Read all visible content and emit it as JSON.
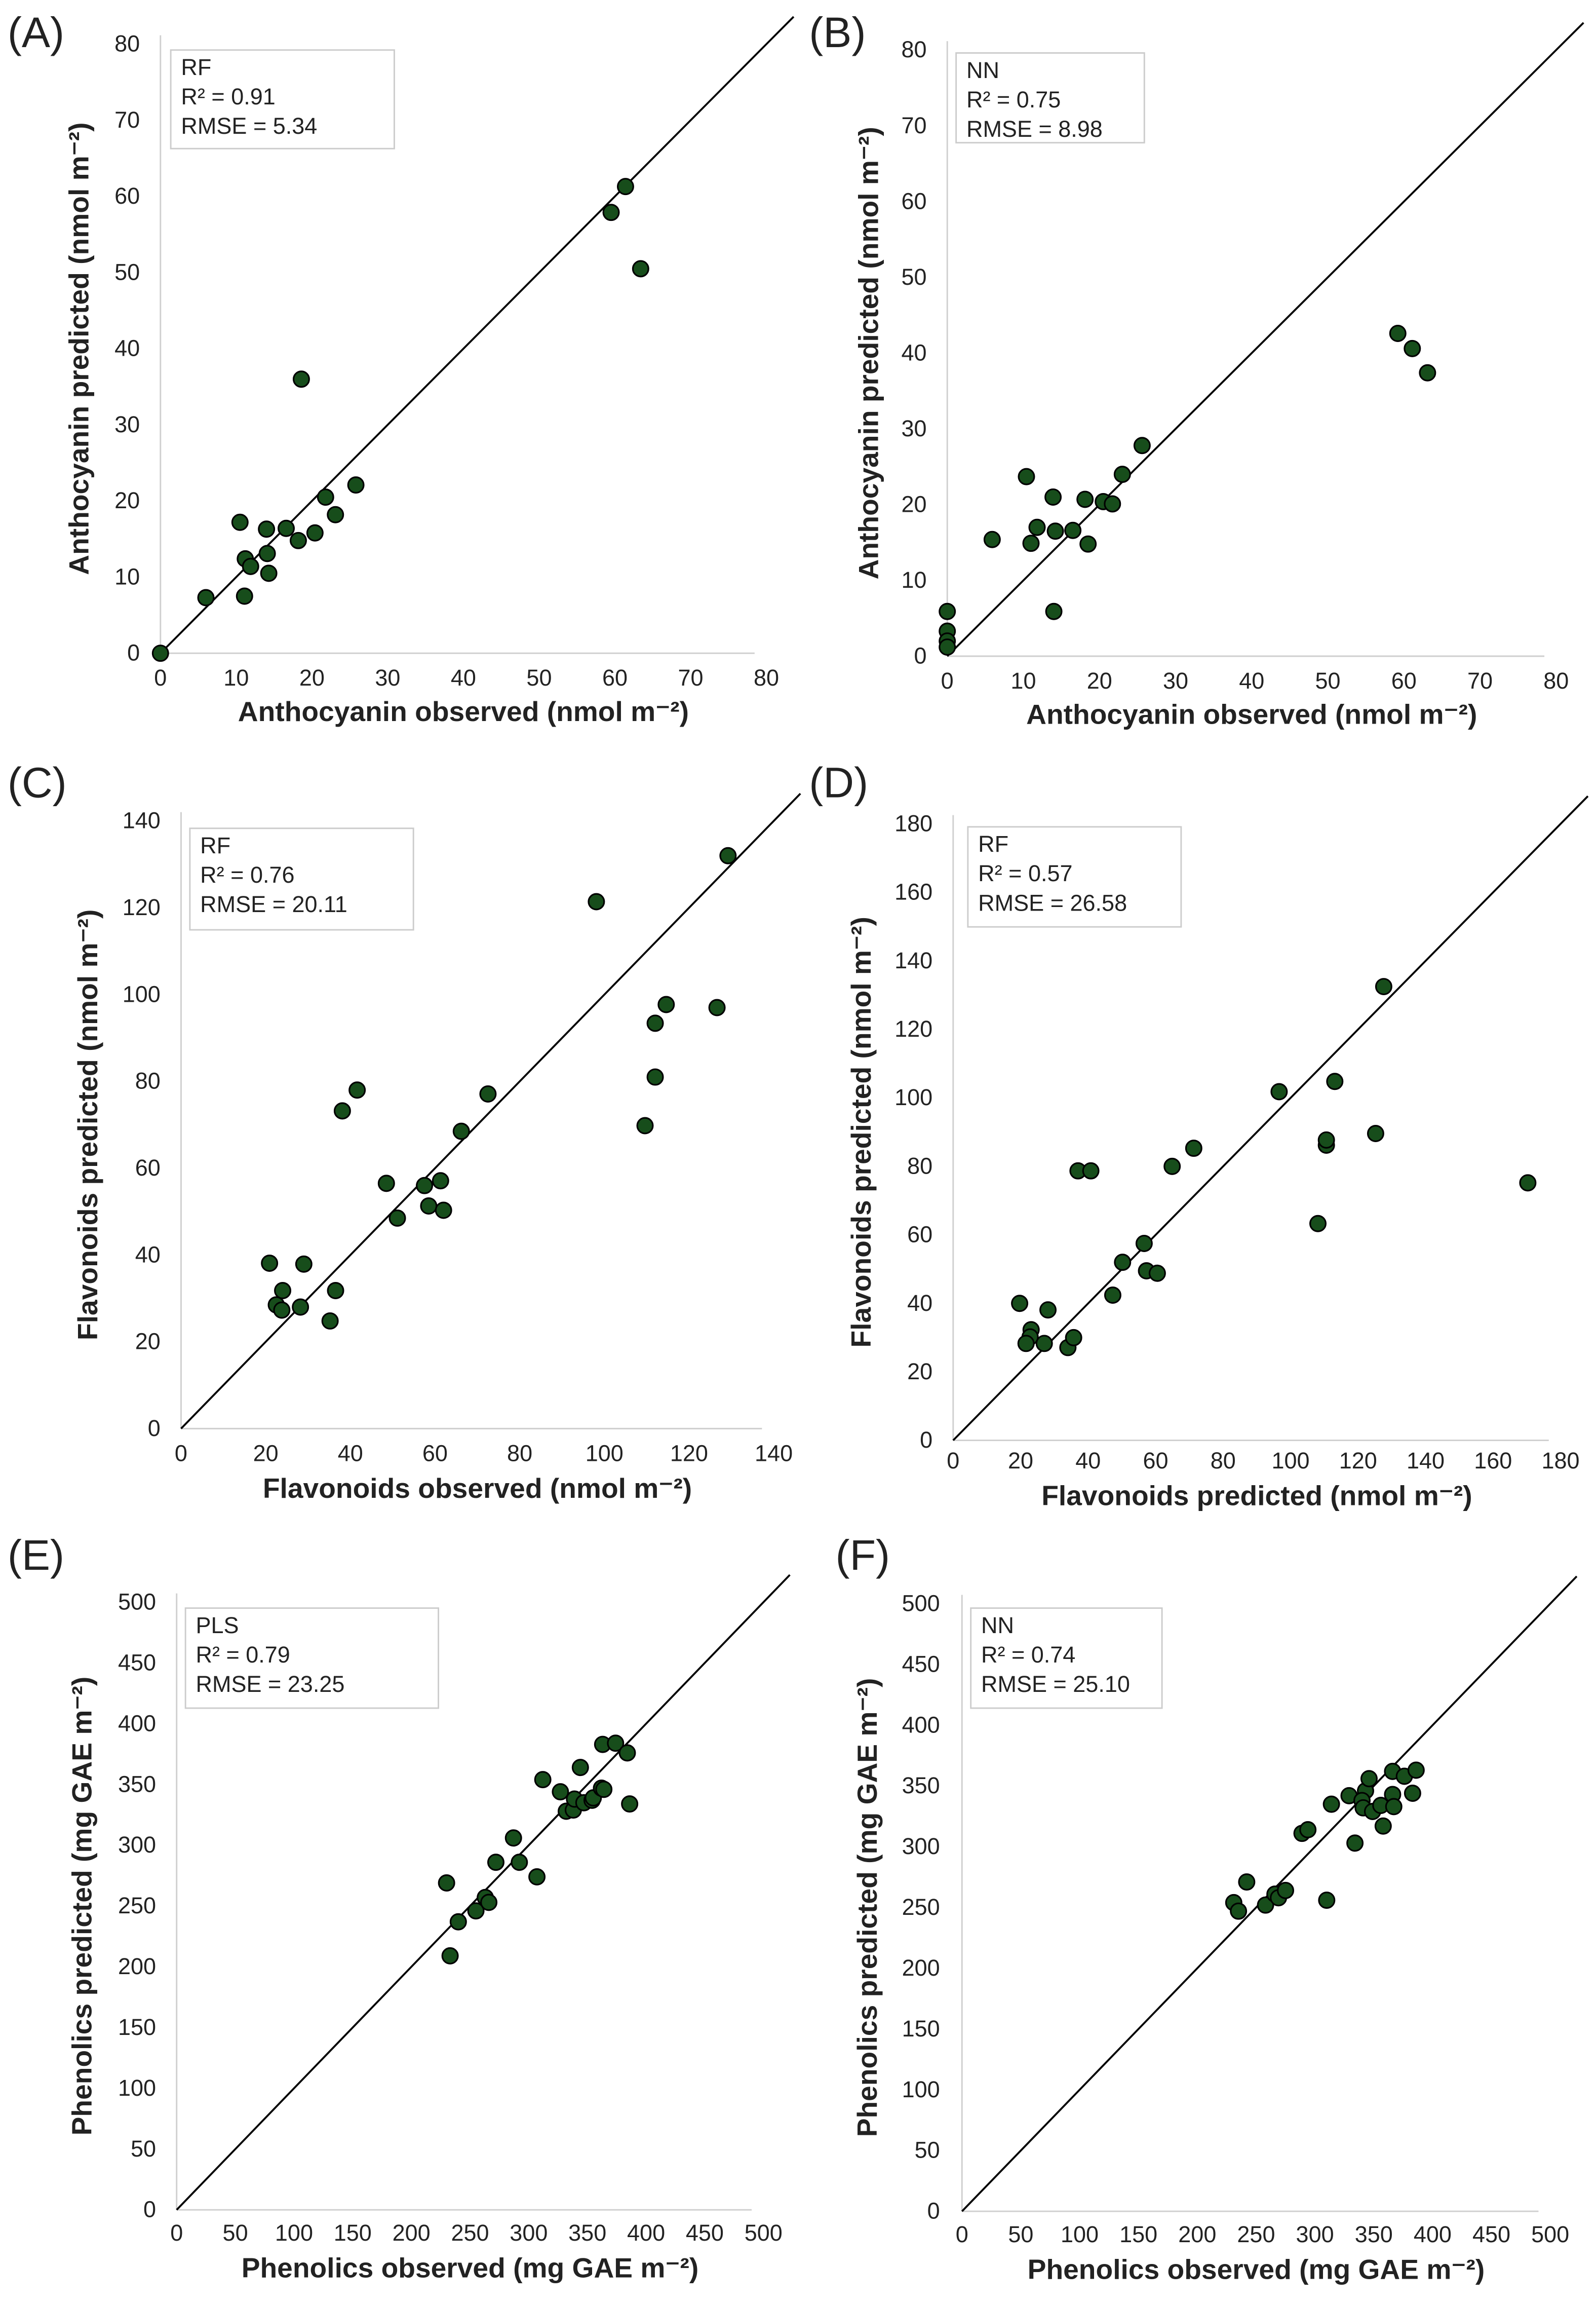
{
  "chart_data": [
    {
      "panel": "(A)",
      "type": "scatter",
      "legend": {
        "model": "RF",
        "r2": "R² = 0.91",
        "rmse": "RMSE = 5.34"
      },
      "xlabel": "Anthocyanin observed (nmol m⁻²)",
      "ylabel": "Anthocyanin predicted (nmol m⁻²)",
      "xlim": [
        0,
        80
      ],
      "ylim": [
        0,
        80
      ],
      "xstep": 10,
      "ystep": 10,
      "xticks": [
        "0",
        "10",
        "20",
        "30",
        "40",
        "50",
        "60",
        "70",
        "80"
      ],
      "yticks": [
        "0",
        "10",
        "20",
        "30",
        "40",
        "50",
        "60",
        "70",
        "80"
      ],
      "reference_line": "1:1",
      "marker_color": "#174d1b",
      "x": [
        0,
        6.0,
        10.5,
        14.0,
        16.6,
        11.2,
        11.9,
        14.1,
        14.3,
        11.1,
        18.2,
        20.4,
        21.8,
        23.1,
        25.8,
        18.6,
        59.5,
        61.4,
        63.4
      ],
      "y": [
        0,
        7.3,
        17.2,
        16.3,
        16.4,
        12.4,
        11.4,
        13.1,
        10.5,
        7.5,
        14.8,
        15.8,
        20.5,
        18.2,
        22.1,
        36.0,
        57.9,
        61.3,
        50.5
      ]
    },
    {
      "panel": "(B)",
      "type": "scatter",
      "legend": {
        "model": "NN",
        "r2": "R² = 0.75",
        "rmse": "RMSE = 8.98"
      },
      "xlabel": "Anthocyanin observed (nmol m⁻²)",
      "ylabel": "Anthocyanin predicted (nmol m⁻²)",
      "xlim": [
        0,
        80
      ],
      "ylim": [
        0,
        80
      ],
      "xstep": 10,
      "ystep": 10,
      "xticks": [
        "0",
        "10",
        "20",
        "30",
        "40",
        "50",
        "60",
        "70",
        "80"
      ],
      "yticks": [
        "0",
        "10",
        "20",
        "30",
        "40",
        "50",
        "60",
        "70",
        "80"
      ],
      "reference_line": "1:1",
      "marker_color": "#174d1b",
      "x": [
        0,
        0,
        0,
        0,
        5.9,
        10.4,
        11.0,
        11.8,
        13.9,
        14.2,
        14.0,
        16.5,
        18.1,
        18.5,
        20.5,
        21.7,
        23.0,
        25.6,
        59.2,
        61.1,
        63.1
      ],
      "y": [
        5.9,
        3.3,
        2.0,
        1.2,
        15.4,
        23.7,
        14.9,
        17.0,
        21.0,
        16.5,
        5.9,
        16.6,
        20.7,
        14.8,
        20.4,
        20.1,
        24.0,
        27.8,
        42.6,
        40.6,
        37.4
      ]
    },
    {
      "panel": "(C)",
      "type": "scatter",
      "legend": {
        "model": "RF",
        "r2": "R² = 0.76",
        "rmse": "RMSE = 20.11"
      },
      "xlabel": "Flavonoids observed (nmol m⁻²)",
      "ylabel": "Flavonoids predicted (nmol m⁻²)",
      "xlim": [
        0,
        140
      ],
      "ylim": [
        0,
        140
      ],
      "xstep": 20,
      "ystep": 20,
      "xticks": [
        "0",
        "20",
        "40",
        "60",
        "80",
        "100",
        "120",
        "140"
      ],
      "yticks": [
        "0",
        "20",
        "40",
        "60",
        "80",
        "100",
        "120",
        "140"
      ],
      "reference_line": "1:1",
      "marker_color": "#174d1b",
      "x": [
        20.9,
        29.0,
        24.0,
        22.5,
        23.8,
        28.2,
        36.5,
        35.2,
        38.1,
        41.6,
        48.5,
        51.1,
        57.5,
        58.5,
        61.3,
        62.0,
        66.2,
        72.5,
        98.1,
        109.6,
        112.0,
        112.0,
        114.6,
        126.6,
        129.2
      ],
      "y": [
        38.1,
        37.9,
        31.8,
        28.5,
        27.3,
        28.0,
        31.8,
        24.8,
        73.2,
        78.0,
        56.5,
        48.5,
        56.0,
        51.3,
        57.1,
        50.3,
        68.5,
        77.1,
        121.4,
        69.8,
        93.4,
        81.0,
        97.7,
        97.0,
        132.0
      ]
    },
    {
      "panel": "(D)",
      "type": "scatter",
      "legend": {
        "model": "RF",
        "r2": "R² = 0.57",
        "rmse": "RMSE = 26.58"
      },
      "xlabel": "Flavonoids predicted (nmol m⁻²)",
      "ylabel": "Flavonoids predicted (nmol m⁻²)",
      "xlim": [
        0,
        180
      ],
      "ylim": [
        0,
        180
      ],
      "xstep": 20,
      "ystep": 20,
      "xticks": [
        "0",
        "20",
        "40",
        "60",
        "80",
        "100",
        "120",
        "140",
        "160",
        "180"
      ],
      "yticks": [
        "0",
        "20",
        "40",
        "60",
        "80",
        "100",
        "120",
        "140",
        "160",
        "180"
      ],
      "reference_line": "1:1",
      "marker_color": "#174d1b",
      "x": [
        19.7,
        28.1,
        23.1,
        22.8,
        21.6,
        27.0,
        34.0,
        35.7,
        37.0,
        40.8,
        47.3,
        50.2,
        56.6,
        57.3,
        60.5,
        64.9,
        71.3,
        96.6,
        108.1,
        110.6,
        110.6,
        113.1,
        125.2,
        127.6,
        170.3
      ],
      "y": [
        40.0,
        38.1,
        32.3,
        30.2,
        28.3,
        28.3,
        27.1,
        30.0,
        78.7,
        78.7,
        42.4,
        52.0,
        57.5,
        49.5,
        48.8,
        80.0,
        85.3,
        101.8,
        63.3,
        86.2,
        87.7,
        104.8,
        89.6,
        132.5,
        75.2
      ]
    },
    {
      "panel": "(E)",
      "type": "scatter",
      "legend": {
        "model": "PLS",
        "r2": "R² = 0.79",
        "rmse": "RMSE = 23.25"
      },
      "xlabel": "Phenolics observed (mg GAE m⁻²)",
      "ylabel": "Phenolics predicted (mg GAE m⁻²)",
      "xlim": [
        0,
        500
      ],
      "ylim": [
        0,
        500
      ],
      "xstep": 50,
      "ystep": 50,
      "xticks": [
        "0",
        "50",
        "100",
        "150",
        "200",
        "250",
        "300",
        "350",
        "400",
        "450",
        "500"
      ],
      "yticks": [
        "0",
        "50",
        "100",
        "150",
        "200",
        "250",
        "300",
        "350",
        "400",
        "450",
        "500"
      ],
      "reference_line": "1:1",
      "marker_color": "#174d1b",
      "x": [
        230,
        233,
        240,
        255,
        263,
        266,
        272,
        287,
        292,
        307,
        312,
        327,
        332,
        338,
        339,
        347,
        344,
        354,
        355,
        362,
        364,
        363,
        374,
        384,
        386
      ],
      "y": [
        269,
        209,
        237,
        246,
        257,
        253,
        286,
        306,
        286,
        274,
        354,
        344,
        328,
        329,
        338,
        335,
        364,
        337,
        339,
        347,
        346,
        383,
        384,
        376,
        334
      ]
    },
    {
      "panel": "(F)",
      "type": "scatter",
      "legend": {
        "model": "NN",
        "r2": "R² = 0.74",
        "rmse": "RMSE = 25.10"
      },
      "xlabel": "Phenolics observed (mg GAE m⁻²)",
      "ylabel": "Phenolics predicted (mg GAE m⁻²)",
      "xlim": [
        0,
        500
      ],
      "ylim": [
        0,
        500
      ],
      "xstep": 50,
      "ystep": 50,
      "xticks": [
        "0",
        "50",
        "100",
        "150",
        "200",
        "250",
        "300",
        "350",
        "400",
        "450",
        "500"
      ],
      "yticks": [
        "0",
        "50",
        "100",
        "150",
        "200",
        "250",
        "300",
        "350",
        "400",
        "450",
        "500"
      ],
      "reference_line": "1:1",
      "marker_color": "#174d1b",
      "x": [
        231,
        235,
        242,
        258,
        266,
        269,
        275,
        310,
        289,
        294,
        314,
        334,
        329,
        343,
        346,
        340,
        341,
        349,
        356,
        358,
        366,
        367,
        366,
        376,
        386,
        383
      ],
      "y": [
        254,
        247,
        271,
        252,
        261,
        258,
        264,
        256,
        311,
        314,
        335,
        303,
        342,
        346,
        356,
        338,
        332,
        329,
        334,
        317,
        343,
        333,
        362,
        358,
        363,
        344
      ]
    }
  ]
}
